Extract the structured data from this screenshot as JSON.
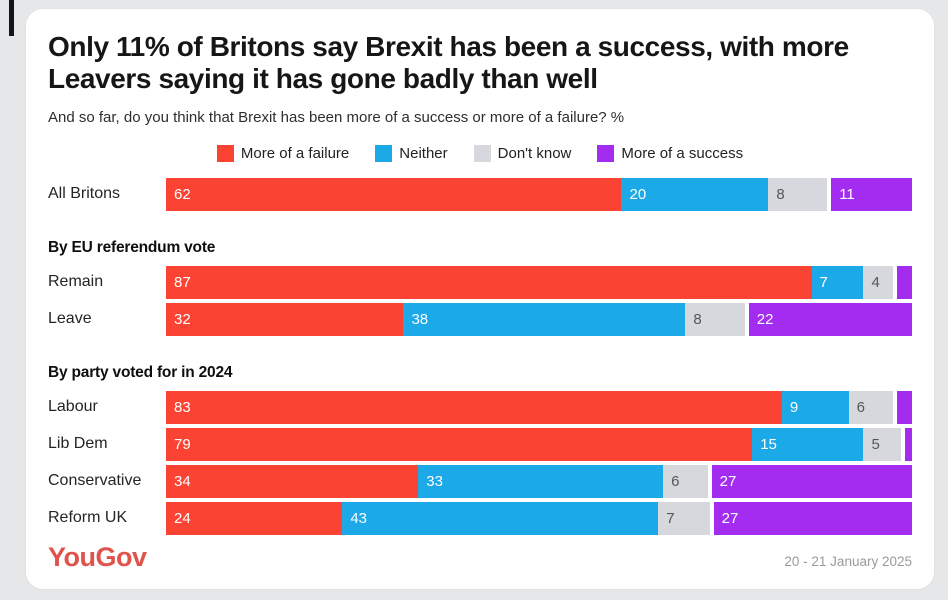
{
  "header": {
    "title": "Only 11% of Britons say Brexit has been a success, with more Leavers saying it has gone badly than well",
    "subtitle": "And so far, do you think that Brexit has been more of a success or more of a failure? %"
  },
  "colors": {
    "failure_red": "#fb4333",
    "neither_blue": "#1ba9e8",
    "dontknow_gray": "#d7d8de",
    "success_purple": "#a32cf0",
    "gray_segment_text": "#55565c",
    "logo_red": "#e0524c"
  },
  "legend": [
    {
      "label": "More of a failure",
      "color": "#fb4333"
    },
    {
      "label": "Neither",
      "color": "#1ba9e8"
    },
    {
      "label": "Don't know",
      "color": "#d7d8de"
    },
    {
      "label": "More of a success",
      "color": "#a32cf0"
    }
  ],
  "chart_data": {
    "type": "bar",
    "orientation": "horizontal",
    "stacked": true,
    "title": "Only 11% of Britons say Brexit has been a success, with more Leavers saying it has gone badly than well",
    "subtitle": "And so far, do you think that Brexit has been more of a success or more of a failure? %",
    "xlim": [
      0,
      100
    ],
    "legend_position": "top-center",
    "series_names": [
      "More of a failure",
      "Neither",
      "Don't know",
      "More of a success"
    ],
    "series_colors": [
      "#fb4333",
      "#1ba9e8",
      "#d7d8de",
      "#a32cf0"
    ],
    "label_note": "segment values below 4 are drawn without a number label",
    "groups": [
      {
        "heading": "",
        "rows": [
          {
            "label": "All Britons",
            "values": [
              62,
              20,
              8,
              11
            ]
          }
        ]
      },
      {
        "heading": "By EU referendum vote",
        "rows": [
          {
            "label": "Remain",
            "values": [
              87,
              7,
              4,
              2
            ]
          },
          {
            "label": "Leave",
            "values": [
              32,
              38,
              8,
              22
            ]
          }
        ]
      },
      {
        "heading": "By party voted for in 2024",
        "rows": [
          {
            "label": "Labour",
            "values": [
              83,
              9,
              6,
              2
            ]
          },
          {
            "label": "Lib Dem",
            "values": [
              79,
              15,
              5,
              1
            ]
          },
          {
            "label": "Conservative",
            "values": [
              34,
              33,
              6,
              27
            ]
          },
          {
            "label": "Reform UK",
            "values": [
              24,
              43,
              7,
              27
            ]
          }
        ]
      }
    ]
  },
  "footer": {
    "logo_text": "YouGov",
    "date_range": "20 - 21 January 2025"
  }
}
